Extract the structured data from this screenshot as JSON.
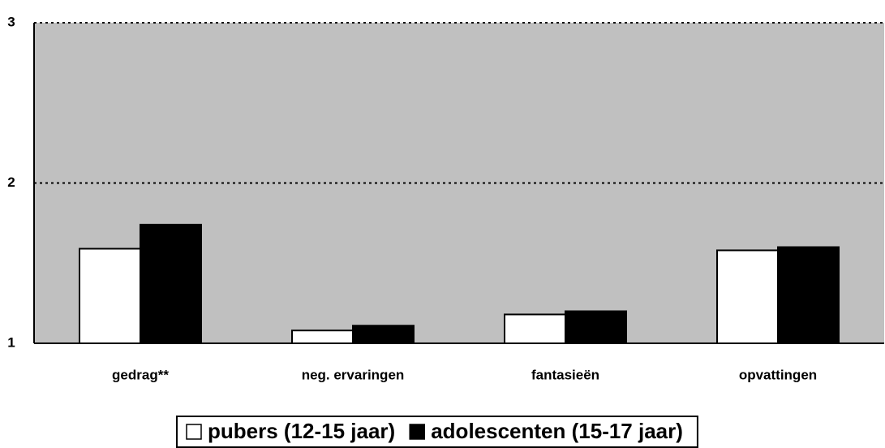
{
  "chart_data": {
    "type": "bar",
    "categories": [
      "gedrag**",
      "neg. ervaringen",
      "fantasieën",
      "opvattingen"
    ],
    "series": [
      {
        "name": "pubers (12-15 jaar)",
        "color": "#ffffff",
        "values": [
          1.59,
          1.08,
          1.18,
          1.58
        ]
      },
      {
        "name": "adolescenten (15-17 jaar)",
        "color": "#000000",
        "values": [
          1.74,
          1.11,
          1.2,
          1.6
        ]
      }
    ],
    "ylim": [
      1,
      3
    ],
    "yticks": [
      1,
      2,
      3
    ],
    "grid": true,
    "plot_background": "#c0c0c0",
    "legend": "bottom"
  }
}
